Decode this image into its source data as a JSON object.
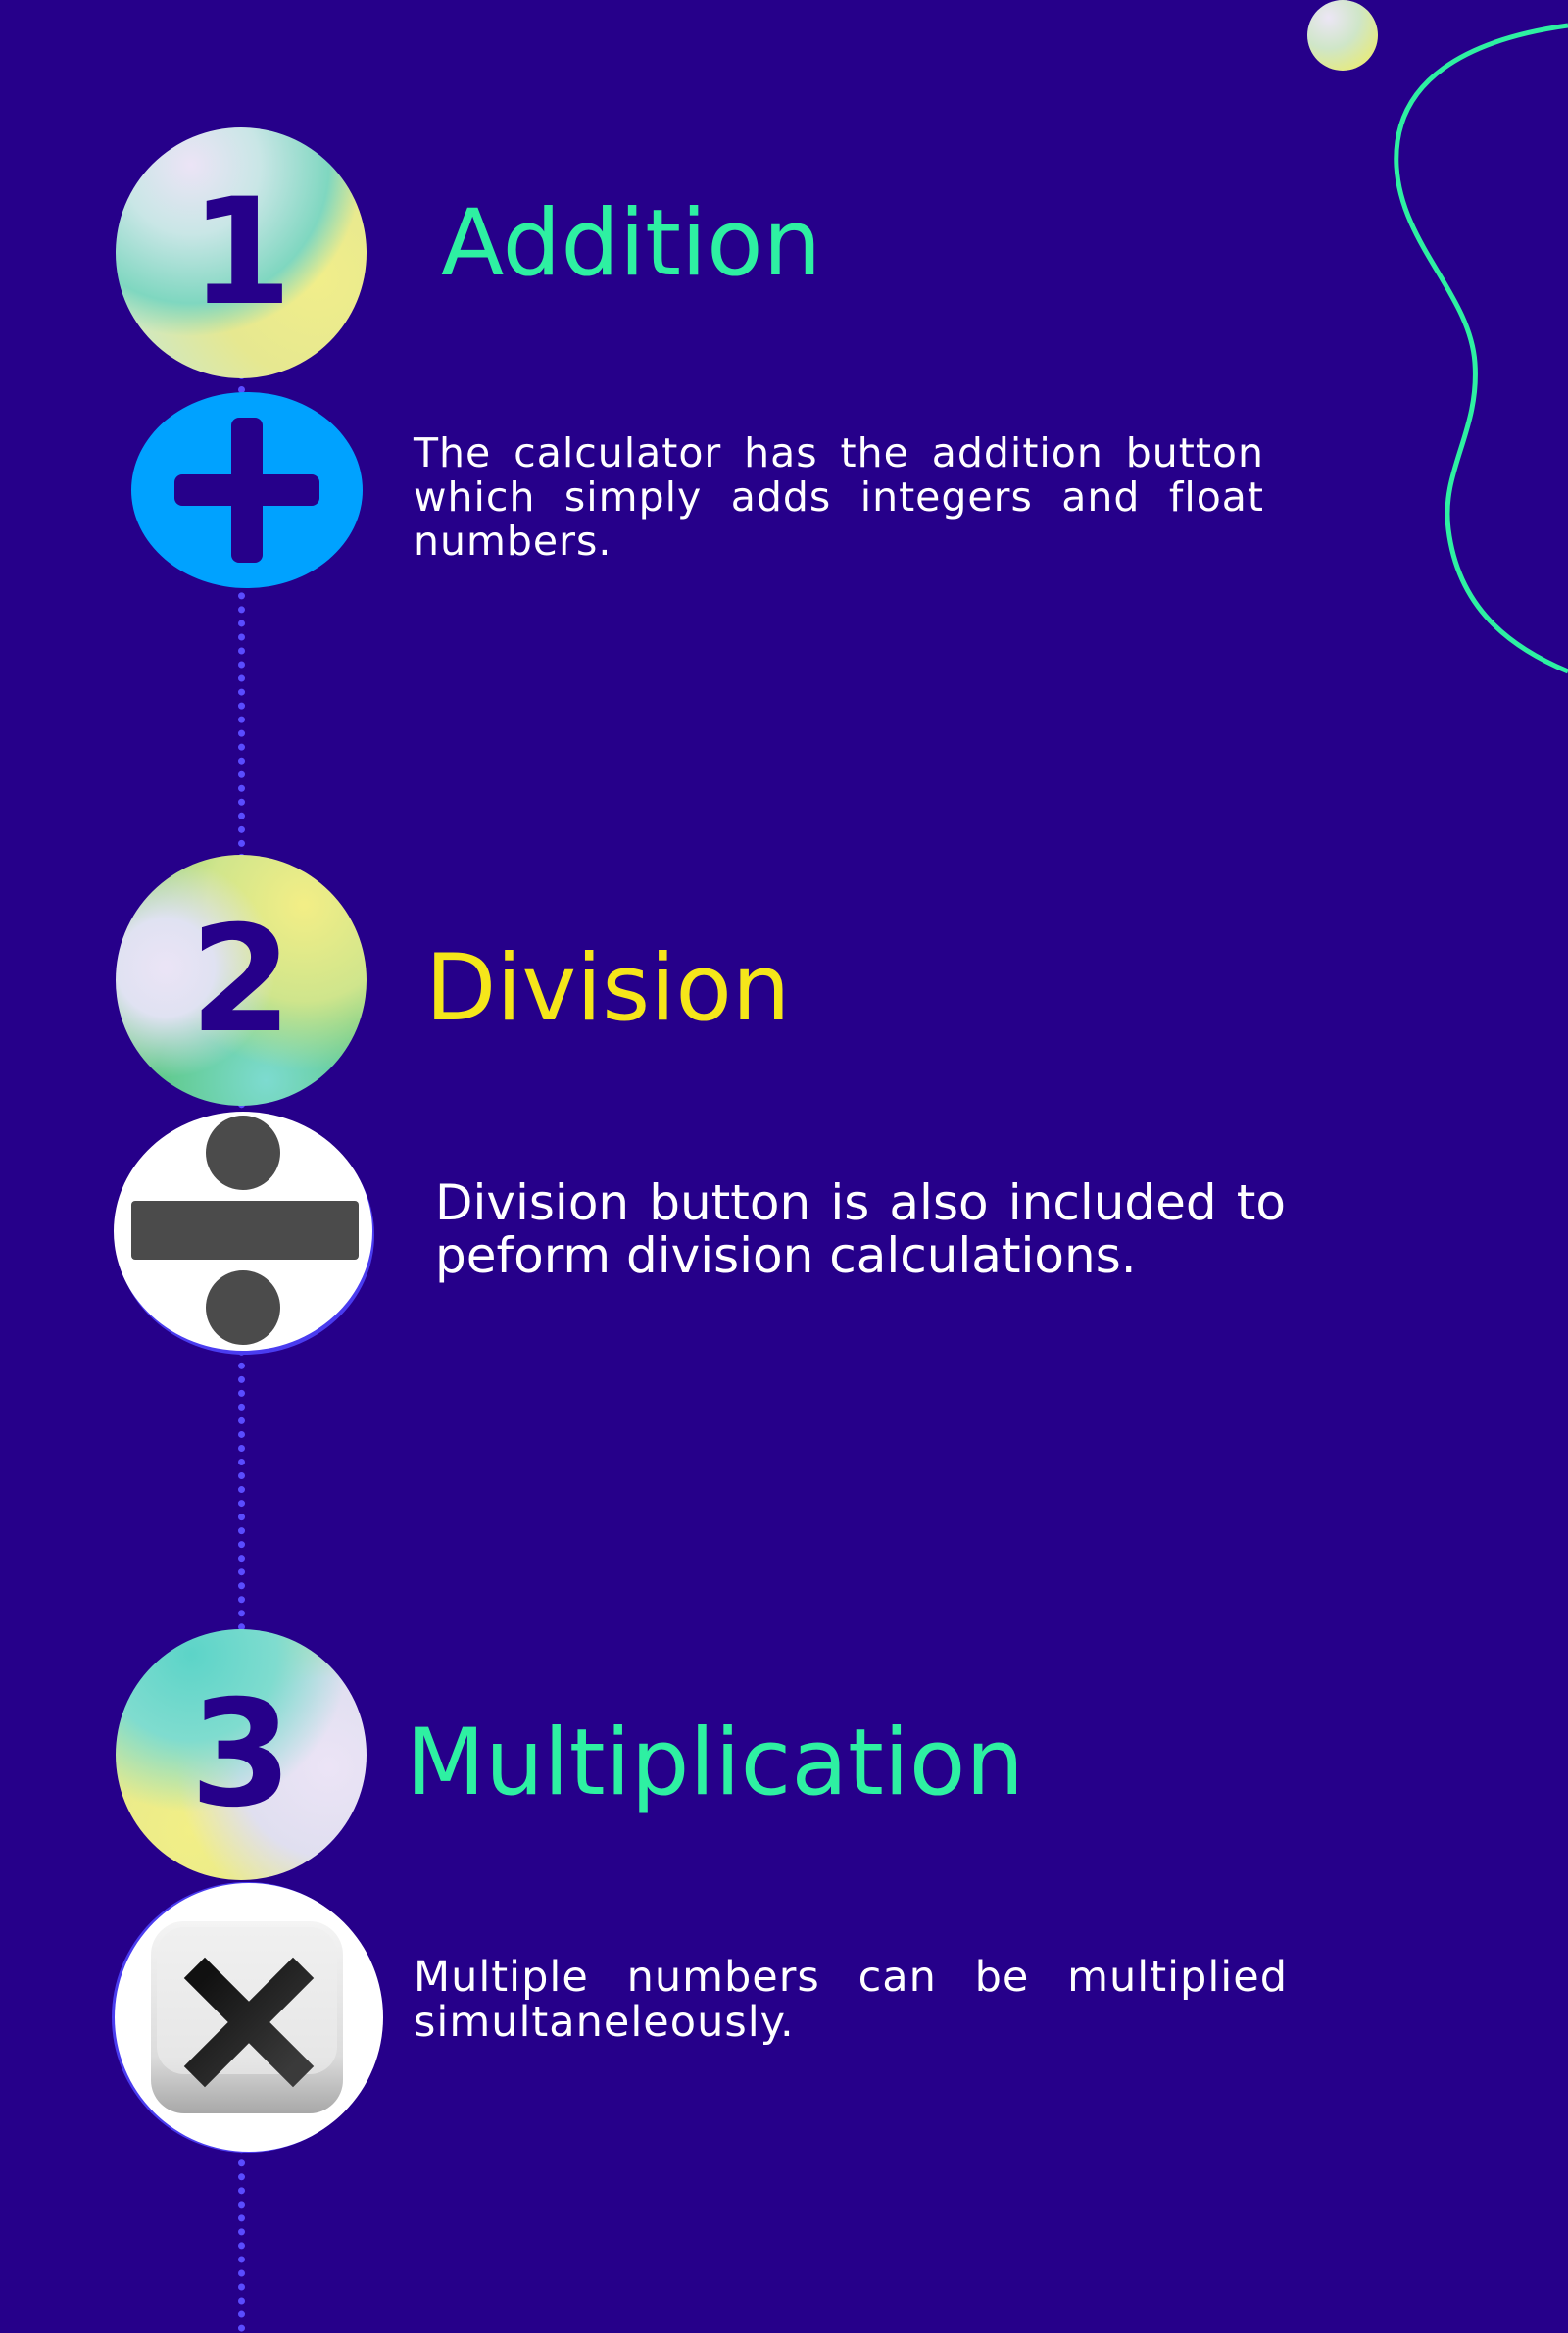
{
  "steps": [
    {
      "number": "1",
      "title": "Addition",
      "title_color": "#2ef0a2",
      "description": "The calculator has the addition button which simply adds integers and float numbers.",
      "icon": "plus-icon",
      "icon_color": "#00a2ff"
    },
    {
      "number": "2",
      "title": "Division",
      "title_color": "#f5e61a",
      "description": "Division button is also included to peform division calculations.",
      "icon": "division-icon"
    },
    {
      "number": "3",
      "title": "Multiplication",
      "title_color": "#2ef0a2",
      "description": "Multiple numbers can be multiplied simultaneleously.",
      "icon": "multiply-icon"
    }
  ],
  "colors": {
    "background": "#26008a",
    "timeline": "#5a4cff",
    "accent_green": "#2ef0a2",
    "accent_yellow": "#f5e61a"
  }
}
